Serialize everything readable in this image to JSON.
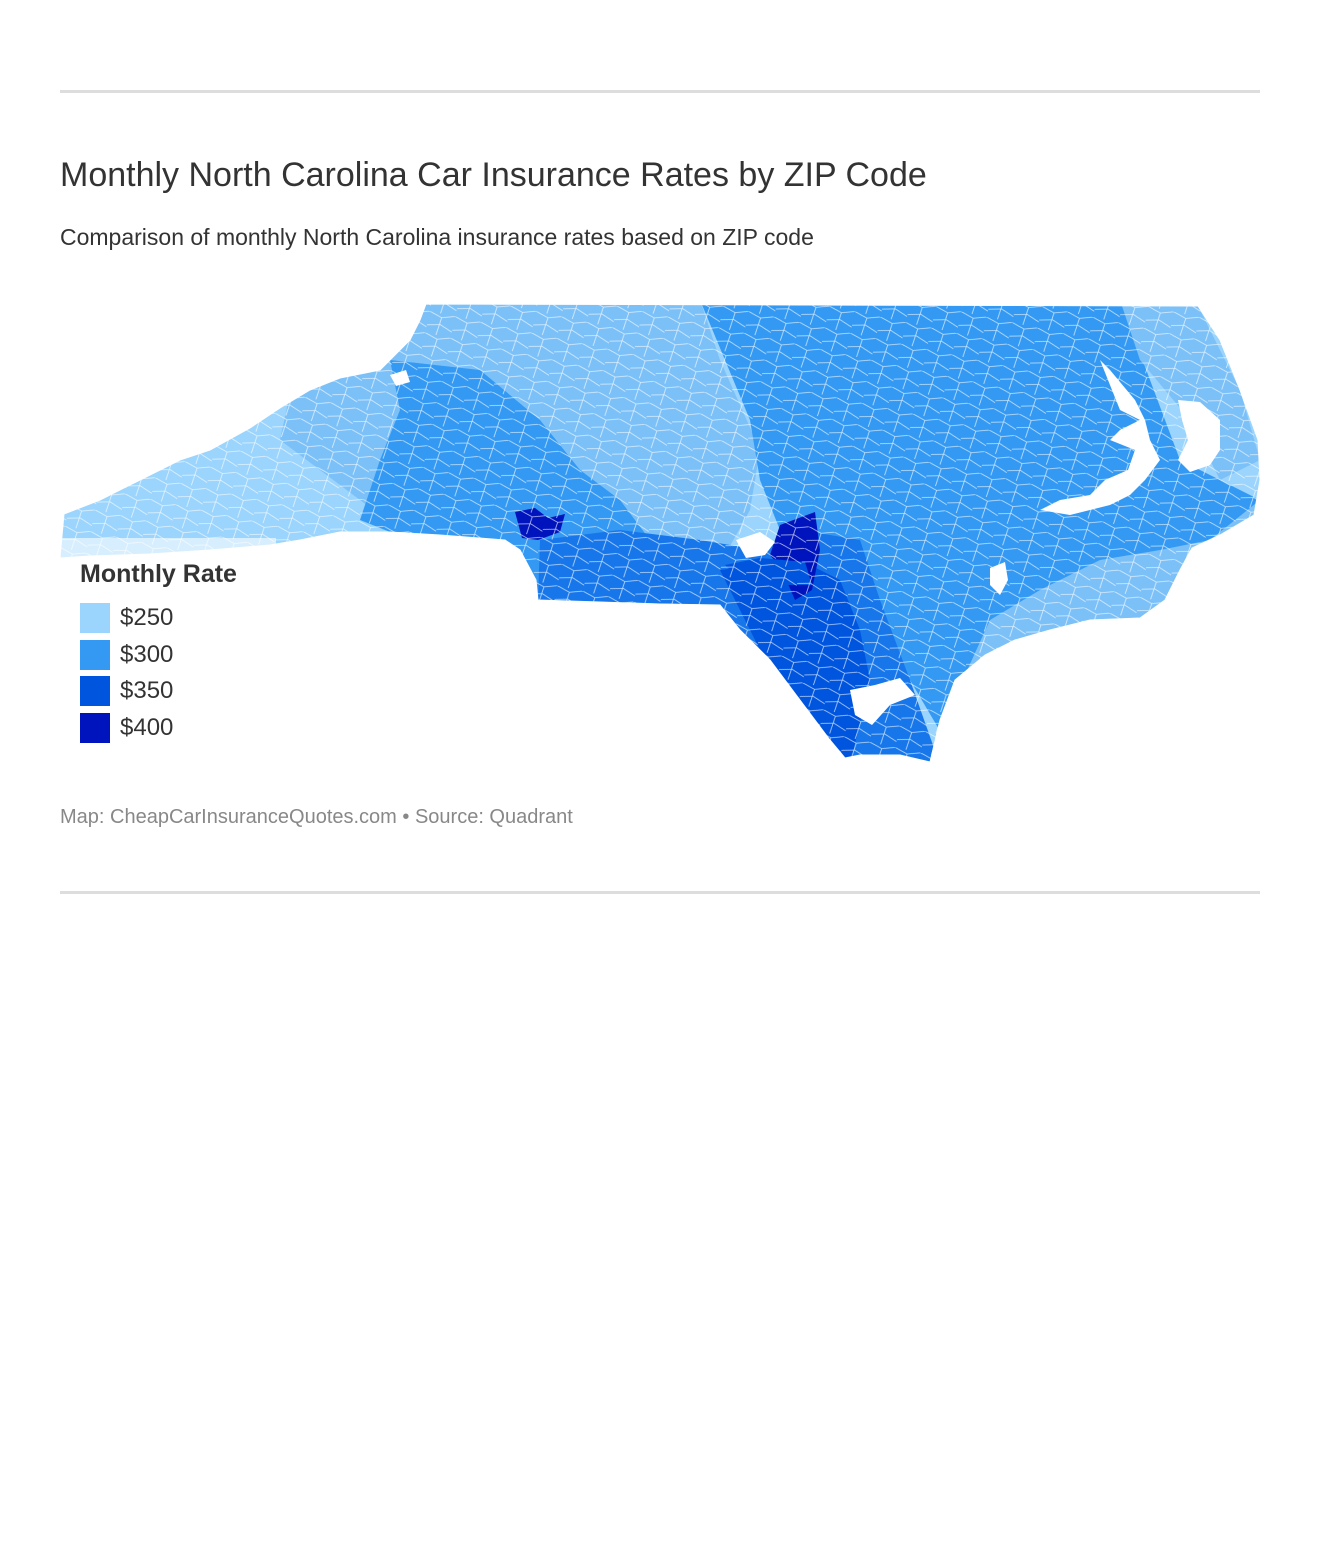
{
  "title": "Monthly North Carolina Car Insurance Rates by ZIP Code",
  "subtitle": "Comparison of monthly North Carolina insurance rates based on ZIP code",
  "legend": {
    "title": "Monthly Rate",
    "items": [
      {
        "label": "$250",
        "color": "#9bd4fc"
      },
      {
        "label": "$300",
        "color": "#3399f3"
      },
      {
        "label": "$350",
        "color": "#0055de"
      },
      {
        "label": "$400",
        "color": "#0014bd"
      }
    ]
  },
  "credit": "Map: CheapCarInsuranceQuotes.com • Source: Quadrant",
  "map": {
    "region": "North Carolina",
    "unit": "ZIP code",
    "colors": {
      "light": "#9bd4fc",
      "mid_light": "#7cc0f8",
      "mid": "#3399f3",
      "mid_dark": "#1777ea",
      "dark": "#0055de",
      "darkest": "#0014bd",
      "water": "#ffffff"
    }
  }
}
